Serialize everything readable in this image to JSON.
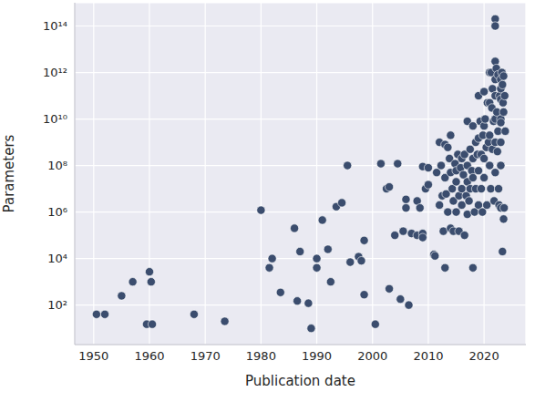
{
  "chart_data": {
    "type": "scatter",
    "x_label": "Publication date",
    "y_label": "Parameters",
    "log": "y",
    "grid": true,
    "color": "#3b4d6e",
    "marker": "circle",
    "xlim": [
      1946.6,
      2027.5
    ],
    "xticks": [
      1950,
      1960,
      1970,
      1980,
      1990,
      2000,
      2010,
      2020
    ],
    "ylim": [
      2,
      1000000000000000.0
    ],
    "yticks": [
      {
        "value": 100,
        "label": "10²"
      },
      {
        "value": 10000,
        "label": "10⁴"
      },
      {
        "value": 1000000,
        "label": "10⁶"
      },
      {
        "value": 100000000,
        "label": "10⁸"
      },
      {
        "value": 10000000000,
        "label": "10¹⁰"
      },
      {
        "value": 1000000000000,
        "label": "10¹²"
      },
      {
        "value": 100000000000000,
        "label": "10¹⁴"
      }
    ],
    "x": [
      1950.5,
      1952,
      1955,
      1957,
      1959.5,
      1960,
      1960.3,
      1960.5,
      1968,
      1973.5,
      1980,
      1981.5,
      1982,
      1983.5,
      1986,
      1986.5,
      1987,
      1988.5,
      1989,
      1990,
      1990,
      1991,
      1992,
      1992.5,
      1993.5,
      1994.5,
      1995.5,
      1996,
      1997.5,
      1998,
      1998.5,
      1998.5,
      2000.5,
      2001.5,
      2002.5,
      2003,
      2003,
      2004,
      2004.5,
      2005,
      2005.5,
      2006,
      2006,
      2006.5,
      2007,
      2008,
      2008,
      2008.5,
      2009,
      2009,
      2009,
      2009.5,
      2010,
      2010,
      2011,
      2011.2,
      2011.5,
      2012,
      2012,
      2012.3,
      2012.5,
      2012.7,
      2013,
      2013,
      2013,
      2013.2,
      2013.5,
      2013.5,
      2013.8,
      2014,
      2014,
      2014,
      2014.3,
      2014.5,
      2014.5,
      2014.8,
      2015,
      2015,
      2015,
      2015.3,
      2015.5,
      2015.5,
      2015.8,
      2016,
      2016,
      2016,
      2016.3,
      2016.5,
      2016.5,
      2016.8,
      2017,
      2017,
      2017,
      2017,
      2017.3,
      2017.5,
      2017.5,
      2017.8,
      2018,
      2018,
      2018,
      2018,
      2018.3,
      2018.5,
      2018.5,
      2018.8,
      2019,
      2019,
      2019,
      2019,
      2019.3,
      2019.5,
      2019.5,
      2019.7,
      2019.8,
      2020,
      2020,
      2020,
      2020,
      2020.2,
      2020.4,
      2020.5,
      2020.6,
      2020.8,
      2021,
      2021,
      2021,
      2021,
      2021.2,
      2021.3,
      2021.4,
      2021.5,
      2021.5,
      2021.7,
      2021.8,
      2022,
      2022,
      2022,
      2022,
      2022,
      2022,
      2022,
      2022,
      2022.2,
      2022.3,
      2022.4,
      2022.5,
      2022.5,
      2022.6,
      2022.7,
      2022.8,
      2023,
      2023,
      2023,
      2023,
      2023,
      2023,
      2023,
      2023,
      2023.2,
      2023.3,
      2023.3,
      2023.4,
      2023.5,
      2023.5,
      2023.5,
      2023.6,
      2023.7,
      2023.8
    ],
    "values": [
      40,
      40,
      250,
      1000,
      15,
      2700,
      1000,
      15,
      40,
      20,
      1200000,
      4000,
      10000,
      350,
      200000,
      150,
      20000,
      120,
      10,
      10000,
      4000,
      450000,
      25000,
      1000,
      1700000,
      2500000,
      100000000,
      7000,
      12000,
      8000,
      60000,
      280,
      15,
      120000000,
      10000000,
      12000000,
      500,
      100000,
      120000000,
      180,
      150000,
      3500000,
      1500000,
      100,
      120000,
      100000,
      3000000,
      1500000,
      120000,
      80000,
      90000000,
      10000000,
      15000000,
      80000000,
      15000,
      13000,
      50000000,
      1000000000,
      2000000,
      100000000,
      5000000,
      150000,
      800000000,
      30000000,
      4000,
      6000000,
      1000000,
      600000000,
      200000000,
      2000000000,
      50000000,
      200000,
      10000000,
      3000000,
      150000,
      120000000,
      60000000,
      1000000,
      20000000,
      300000000,
      5000000,
      150000,
      80000000,
      200000000,
      10000000,
      2000000,
      40000000,
      100000,
      300000000,
      5000000,
      8000000000,
      100000000,
      20000000,
      800000,
      3000000,
      500000000,
      10000000,
      60000000,
      5000000000,
      4000,
      200000000,
      30000000,
      1000000,
      1000000000,
      10000000,
      300000000,
      100000000000,
      1500000000,
      60000000,
      2000000,
      8000000000,
      300000000,
      10000000,
      1000000,
      2000000000,
      150000000000,
      5000000000,
      200000000,
      30000000,
      10000000000,
      600000000,
      2000000,
      50000000000,
      1000000000,
      1000000000000,
      50000000000,
      2000000000,
      100000000,
      10000000,
      1000000000000,
      30000000000,
      200000000000,
      500000000,
      8000000000,
      3000000,
      200000000000000,
      100000000000000,
      3000000000000,
      500000000000,
      100000000000,
      10000000000,
      1000000000,
      50000000,
      1500000000000,
      20000000000,
      400000000,
      800000000000,
      3000000000,
      10000000,
      2000000,
      100000000000,
      500000000000,
      200000000000,
      70000000000,
      10000000000,
      7000000000,
      1000000000,
      100000000,
      1500000,
      1000000000000,
      300000000000,
      20000,
      50000000000,
      700000000000,
      500000,
      20000000000,
      1500000,
      100000000000,
      3000000000
    ]
  }
}
